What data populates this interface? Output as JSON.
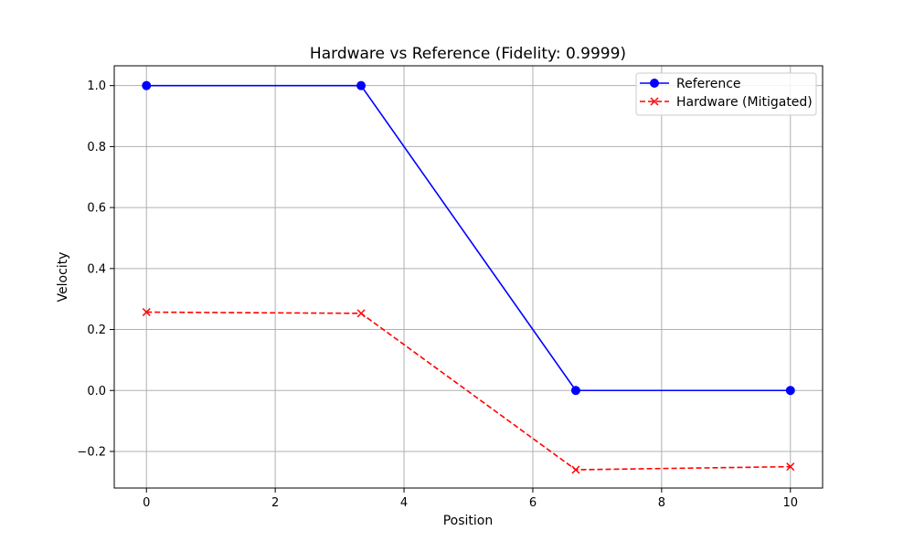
{
  "chart_data": {
    "type": "line",
    "title": "Hardware vs Reference (Fidelity: 0.9999)",
    "xlabel": "Position",
    "ylabel": "Velocity",
    "xlim": [
      -0.5,
      10.5
    ],
    "ylim": [
      -0.32,
      1.065
    ],
    "xticks": [
      0,
      2,
      4,
      6,
      8,
      10
    ],
    "yticks": [
      -0.2,
      0.0,
      0.2,
      0.4,
      0.6,
      0.8,
      1.0
    ],
    "xtick_labels": [
      "0",
      "2",
      "4",
      "6",
      "8",
      "10"
    ],
    "ytick_labels": [
      "−0.2",
      "0.0",
      "0.2",
      "0.4",
      "0.6",
      "0.8",
      "1.0"
    ],
    "grid": true,
    "legend_position": "top-right",
    "series": [
      {
        "name": "Reference",
        "color": "#0000ff",
        "line_style": "solid",
        "marker": "circle",
        "x": [
          0,
          3.333,
          6.667,
          10
        ],
        "y": [
          1.0,
          1.0,
          0.0,
          0.0
        ]
      },
      {
        "name": "Hardware (Mitigated)",
        "color": "#ff0000",
        "line_style": "dashed",
        "marker": "x",
        "x": [
          0,
          3.333,
          6.667,
          10
        ],
        "y": [
          0.257,
          0.253,
          -0.26,
          -0.25
        ]
      }
    ]
  }
}
